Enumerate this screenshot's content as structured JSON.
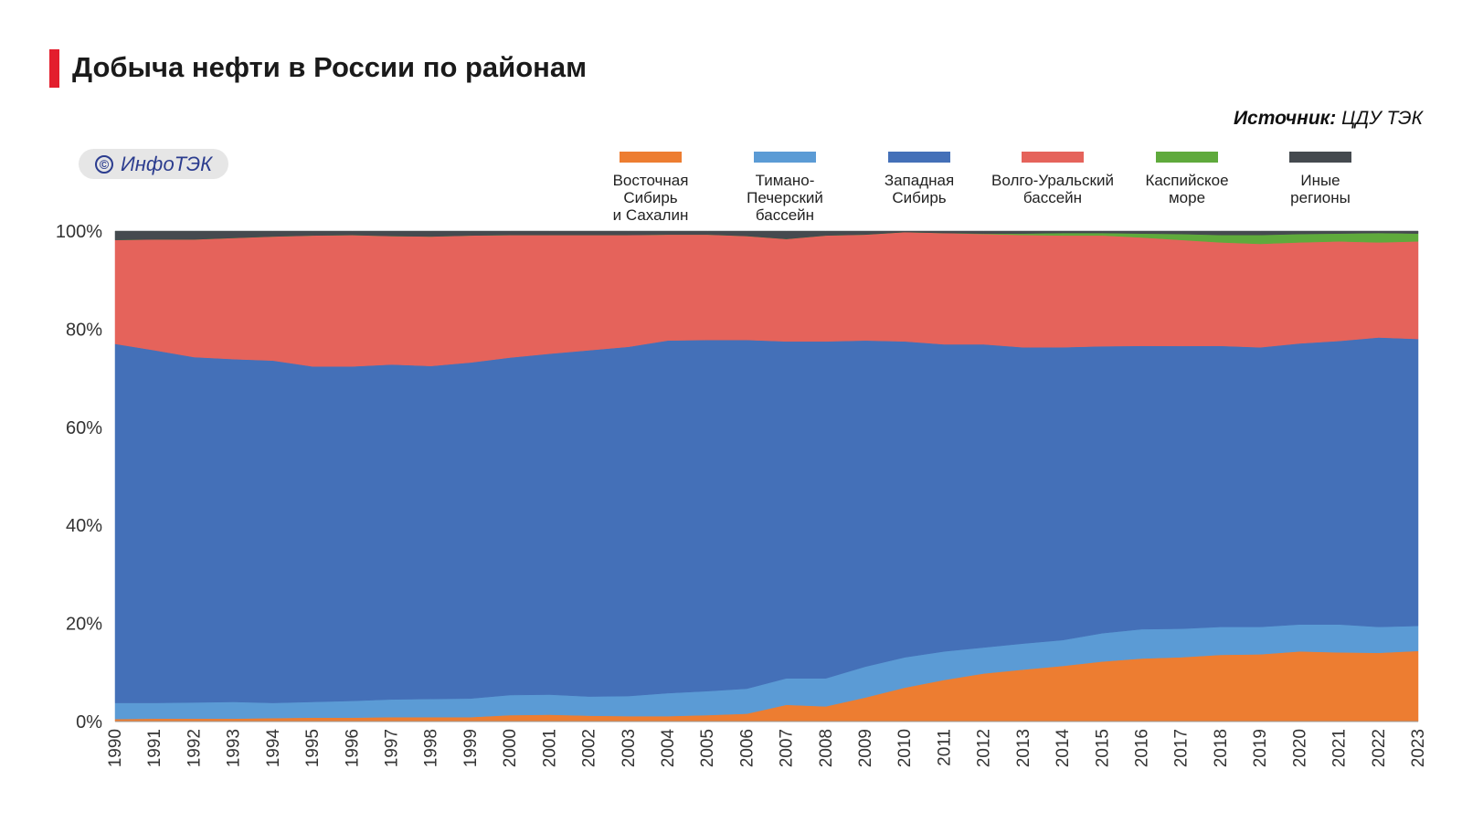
{
  "header": {
    "title": "Добыча нефти в России по районам",
    "source_label": "Источник:",
    "source_value": "ЦДУ ТЭК",
    "logo_text": "ИнфоТЭК",
    "logo_symbol": "©"
  },
  "colors": {
    "accent_bar": "#e31e2d",
    "east_siberia": "#ed7d31",
    "timan_pechora": "#5b9bd5",
    "west_siberia": "#4470b8",
    "volga_ural": "#e5635b",
    "caspian": "#5faa3c",
    "other": "#454a4f"
  },
  "legend": [
    {
      "label": "Восточная\nСибирь\nи Сахалин",
      "color": "#ed7d31",
      "icon": "legend-swatch"
    },
    {
      "label": "Тимано-\nПечерский\nбассейн",
      "color": "#5b9bd5",
      "icon": "legend-swatch"
    },
    {
      "label": "Западная\nСибирь",
      "color": "#4470b8",
      "icon": "legend-swatch"
    },
    {
      "label": "Волго-Уральский\nбассейн",
      "color": "#e5635b",
      "icon": "legend-swatch"
    },
    {
      "label": "Каспийское\nморе",
      "color": "#5faa3c",
      "icon": "legend-swatch"
    },
    {
      "label": "Иные\nрегионы",
      "color": "#454a4f",
      "icon": "legend-swatch"
    }
  ],
  "chart_data": {
    "type": "area",
    "stacked": true,
    "percent": true,
    "x": [
      "1990",
      "1991",
      "1992",
      "1993",
      "1994",
      "1995",
      "1996",
      "1997",
      "1998",
      "1999",
      "2000",
      "2001",
      "2002",
      "2003",
      "2004",
      "2005",
      "2006",
      "2007",
      "2008",
      "2009",
      "2010",
      "2011",
      "2012",
      "2013",
      "2014",
      "2015",
      "2016",
      "2017",
      "2018",
      "2019",
      "2020",
      "2021",
      "2022",
      "2023"
    ],
    "yticks": [
      "0%",
      "20%",
      "40%",
      "60%",
      "80%",
      "100%"
    ],
    "ylim": [
      0,
      100
    ],
    "series": [
      {
        "name": "Восточная Сибирь и Сахалин",
        "color": "#ed7d31",
        "values": [
          0.5,
          0.6,
          0.6,
          0.6,
          0.7,
          0.8,
          0.8,
          0.9,
          0.9,
          0.9,
          1.3,
          1.4,
          1.2,
          1.1,
          1.1,
          1.3,
          1.6,
          3.4,
          3.1,
          4.9,
          6.9,
          8.5,
          9.8,
          10.6,
          11.4,
          12.3,
          12.9,
          13.1,
          13.6,
          13.7,
          14.3,
          14.1,
          14.0,
          14.4
        ]
      },
      {
        "name": "Тимано-Печерский бассейн",
        "color": "#5b9bd5",
        "values": [
          3.3,
          3.2,
          3.3,
          3.4,
          3.1,
          3.2,
          3.4,
          3.6,
          3.7,
          3.8,
          4.1,
          4.1,
          3.9,
          4.1,
          4.7,
          4.9,
          5.1,
          5.4,
          5.7,
          6.3,
          6.2,
          5.8,
          5.3,
          5.3,
          5.3,
          5.8,
          6.0,
          5.8,
          5.7,
          5.6,
          5.5,
          5.7,
          5.3,
          5.1
        ]
      },
      {
        "name": "Западная Сибирь",
        "color": "#4470b8",
        "values": [
          73.2,
          71.9,
          70.4,
          69.9,
          69.8,
          68.4,
          68.2,
          68.3,
          67.9,
          68.5,
          68.8,
          69.5,
          70.6,
          71.2,
          71.9,
          71.6,
          71.1,
          68.7,
          68.7,
          66.5,
          64.4,
          62.6,
          61.8,
          60.4,
          60.0,
          58.8,
          58.0,
          57.6,
          57.3,
          57.0,
          57.3,
          57.8,
          59.0,
          58.5
        ]
      },
      {
        "name": "Волго-Уральский бассейн",
        "color": "#e5635b",
        "values": [
          21.2,
          22.6,
          24.0,
          24.7,
          25.3,
          26.7,
          26.8,
          26.2,
          26.4,
          25.9,
          25.0,
          24.2,
          23.5,
          22.8,
          21.6,
          21.5,
          21.2,
          20.9,
          21.6,
          21.6,
          22.3,
          22.7,
          22.5,
          22.9,
          22.9,
          22.7,
          22.2,
          21.6,
          21.1,
          21.1,
          20.6,
          20.3,
          19.4,
          19.9
        ]
      },
      {
        "name": "Каспийское море",
        "color": "#5faa3c",
        "values": [
          0,
          0,
          0,
          0,
          0,
          0,
          0,
          0,
          0,
          0,
          0,
          0,
          0,
          0,
          0,
          0,
          0,
          0,
          0,
          0,
          0,
          0,
          0.1,
          0.3,
          0.5,
          0.5,
          0.8,
          1.2,
          1.5,
          1.8,
          1.7,
          1.6,
          1.9,
          1.6
        ]
      },
      {
        "name": "Иные регионы",
        "color": "#454a4f",
        "values": [
          1.8,
          1.7,
          1.7,
          1.4,
          1.1,
          0.9,
          0.8,
          1.0,
          1.1,
          0.9,
          0.8,
          0.8,
          0.8,
          0.8,
          0.7,
          0.7,
          1.0,
          1.6,
          0.9,
          0.7,
          0.2,
          0.4,
          0.5,
          0.5,
          0.4,
          0.4,
          0.5,
          0.6,
          0.8,
          0.8,
          0.6,
          0.5,
          0.4,
          0.5
        ]
      }
    ]
  }
}
